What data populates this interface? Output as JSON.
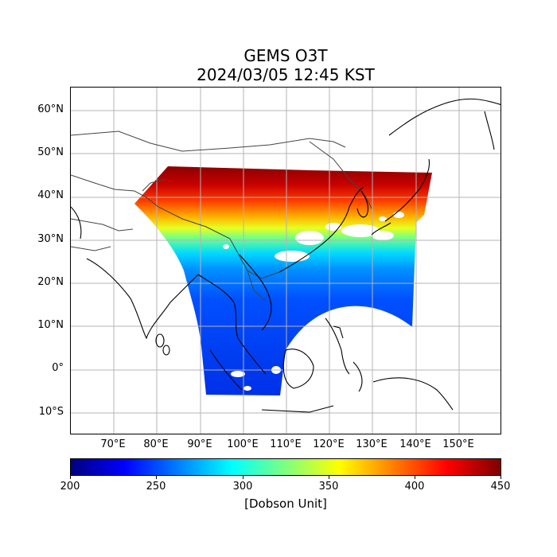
{
  "title": {
    "line1": "GEMS O3T",
    "line2": "2024/03/05 12:45 KST"
  },
  "map": {
    "lon_range": [
      60,
      160
    ],
    "lat_range": [
      -15,
      65
    ],
    "lat_ticks": [
      {
        "value": 60,
        "label": "60°N"
      },
      {
        "value": 50,
        "label": "50°N"
      },
      {
        "value": 40,
        "label": "40°N"
      },
      {
        "value": 30,
        "label": "30°N"
      },
      {
        "value": 20,
        "label": "20°N"
      },
      {
        "value": 10,
        "label": "10°N"
      },
      {
        "value": 0,
        "label": "0°"
      },
      {
        "value": -10,
        "label": "10°S"
      }
    ],
    "lon_ticks": [
      {
        "value": 70,
        "label": "70°E"
      },
      {
        "value": 80,
        "label": "80°E"
      },
      {
        "value": 90,
        "label": "90°E"
      },
      {
        "value": 100,
        "label": "100°E"
      },
      {
        "value": 110,
        "label": "110°E"
      },
      {
        "value": 120,
        "label": "120°E"
      },
      {
        "value": 130,
        "label": "130°E"
      },
      {
        "value": 140,
        "label": "140°E"
      },
      {
        "value": 150,
        "label": "150°E"
      }
    ],
    "gridlines": true,
    "coastline_color": "#000000",
    "border_color": "#444444"
  },
  "colorbar": {
    "min": 200,
    "max": 450,
    "colormap": "jet",
    "ticks": [
      "200",
      "250",
      "300",
      "350",
      "400",
      "450"
    ],
    "unit": "[Dobson Unit]"
  },
  "chart_data": {
    "type": "heatmap",
    "variable": "O3T",
    "units": "Dobson Unit",
    "value_range": [
      200,
      450
    ],
    "zonal_profile": [
      {
        "lat": -5,
        "value": 230
      },
      {
        "lat": 5,
        "value": 232
      },
      {
        "lat": 15,
        "value": 238
      },
      {
        "lat": 25,
        "value": 262
      },
      {
        "lat": 30,
        "value": 290
      },
      {
        "lat": 35,
        "value": 345
      },
      {
        "lat": 38,
        "value": 400
      },
      {
        "lat": 42,
        "value": 425
      },
      {
        "lat": 45,
        "value": 440
      }
    ]
  }
}
